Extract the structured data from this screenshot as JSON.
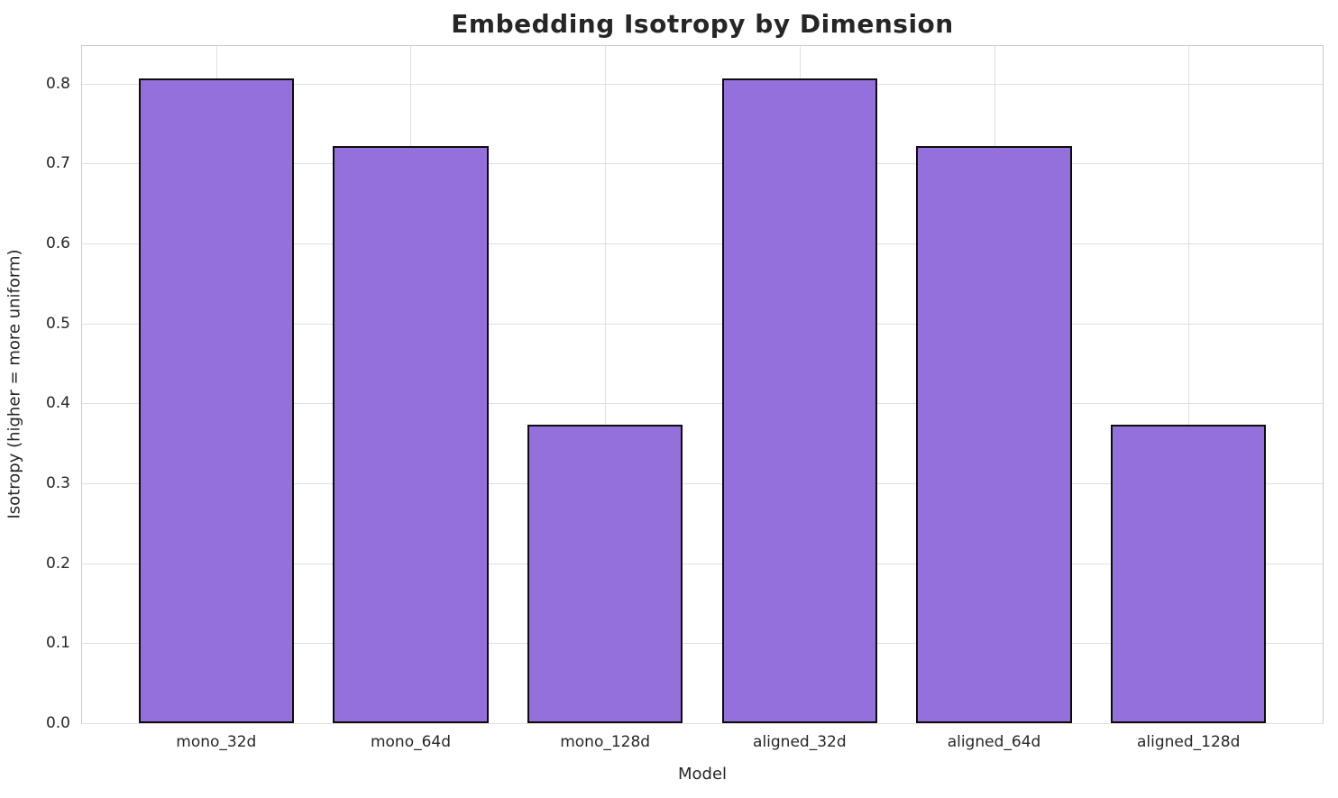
{
  "chart_data": {
    "type": "bar",
    "title": "Embedding Isotropy by Dimension",
    "xlabel": "Model",
    "ylabel": "Isotropy (higher = more uniform)",
    "categories": [
      "mono_32d",
      "mono_64d",
      "mono_128d",
      "aligned_32d",
      "aligned_64d",
      "aligned_128d"
    ],
    "values": [
      0.806,
      0.722,
      0.373,
      0.806,
      0.722,
      0.373
    ],
    "yticks": [
      0.0,
      0.1,
      0.2,
      0.3,
      0.4,
      0.5,
      0.6,
      0.7,
      0.8
    ],
    "ytick_labels": [
      "0.0",
      "0.1",
      "0.2",
      "0.3",
      "0.4",
      "0.5",
      "0.6",
      "0.7",
      "0.8"
    ],
    "ylim": [
      0,
      0.847
    ],
    "xlim": [
      -0.69,
      5.69
    ],
    "bar_width": 0.8,
    "grid": true,
    "legend": null,
    "colors": {
      "bar_fill": "#9370DB",
      "bar_edge": "#0d0d0d",
      "grid_line": "#e0e0e0",
      "spine": "#cccccc",
      "text": "#262626",
      "background": "#ffffff"
    }
  }
}
